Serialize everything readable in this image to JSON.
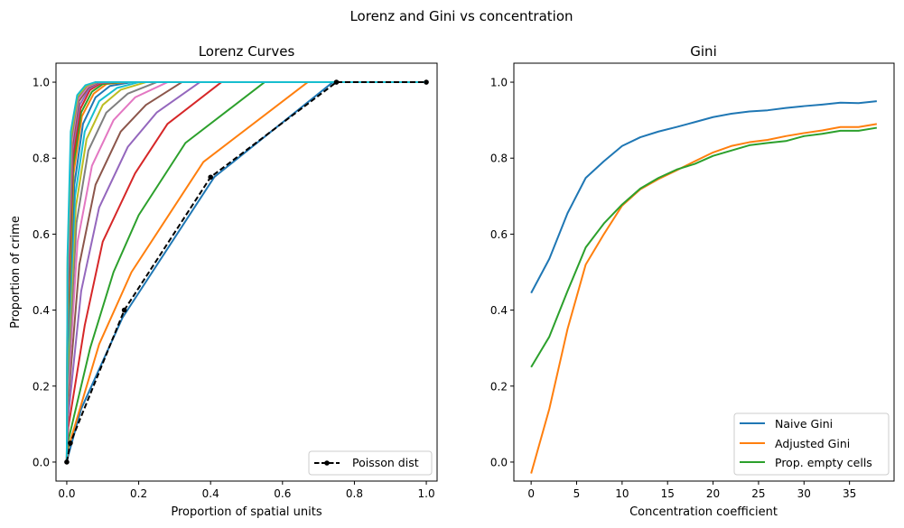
{
  "figure": {
    "title": "Lorenz and Gini vs concentration"
  },
  "chart_data": [
    {
      "type": "line",
      "title": "Lorenz Curves",
      "xlabel": "Proportion of spatial units",
      "ylabel": "Proportion of crime",
      "xlim": [
        -0.03,
        1.03
      ],
      "ylim": [
        -0.05,
        1.05
      ],
      "xticks": [
        "0.0",
        "0.2",
        "0.4",
        "0.6",
        "0.8",
        "1.0"
      ],
      "yticks": [
        "0.0",
        "0.2",
        "0.4",
        "0.6",
        "0.8",
        "1.0"
      ],
      "legend_position": "lower right",
      "legend": [
        "Poisson dist"
      ],
      "reference_series": {
        "name": "Poisson dist",
        "color": "#000000",
        "style": "dashed",
        "marker": "dot",
        "points": [
          [
            0,
            0
          ],
          [
            0.01,
            0.05
          ],
          [
            0.16,
            0.4
          ],
          [
            0.4,
            0.75
          ],
          [
            0.75,
            1.0
          ],
          [
            1.0,
            1.0
          ]
        ]
      },
      "lorenz_series": [
        {
          "color": "#1f77b4",
          "points": [
            [
              0,
              0
            ],
            [
              0.005,
              0.02
            ],
            [
              0.04,
              0.14
            ],
            [
              0.155,
              0.38
            ],
            [
              0.41,
              0.75
            ],
            [
              0.74,
              1.0
            ],
            [
              1,
              1
            ]
          ]
        },
        {
          "color": "#ff7f0e",
          "points": [
            [
              0,
              0
            ],
            [
              0.005,
              0.04
            ],
            [
              0.09,
              0.31
            ],
            [
              0.18,
              0.5
            ],
            [
              0.38,
              0.79
            ],
            [
              0.67,
              1.0
            ],
            [
              1,
              1
            ]
          ]
        },
        {
          "color": "#2ca02c",
          "points": [
            [
              0,
              0
            ],
            [
              0.005,
              0.06
            ],
            [
              0.065,
              0.3
            ],
            [
              0.13,
              0.5
            ],
            [
              0.2,
              0.65
            ],
            [
              0.33,
              0.84
            ],
            [
              0.55,
              1.0
            ],
            [
              1,
              1
            ]
          ]
        },
        {
          "color": "#d62728",
          "points": [
            [
              0,
              0
            ],
            [
              0.004,
              0.09
            ],
            [
              0.05,
              0.36
            ],
            [
              0.1,
              0.58
            ],
            [
              0.19,
              0.76
            ],
            [
              0.28,
              0.89
            ],
            [
              0.43,
              1.0
            ],
            [
              1,
              1
            ]
          ]
        },
        {
          "color": "#9467bd",
          "points": [
            [
              0,
              0
            ],
            [
              0.004,
              0.12
            ],
            [
              0.04,
              0.45
            ],
            [
              0.09,
              0.67
            ],
            [
              0.17,
              0.83
            ],
            [
              0.25,
              0.92
            ],
            [
              0.37,
              1.0
            ],
            [
              1,
              1
            ]
          ]
        },
        {
          "color": "#8c564b",
          "points": [
            [
              0,
              0
            ],
            [
              0.003,
              0.15
            ],
            [
              0.035,
              0.52
            ],
            [
              0.08,
              0.73
            ],
            [
              0.15,
              0.87
            ],
            [
              0.22,
              0.94
            ],
            [
              0.32,
              1.0
            ],
            [
              1,
              1
            ]
          ]
        },
        {
          "color": "#e377c2",
          "points": [
            [
              0,
              0
            ],
            [
              0.003,
              0.18
            ],
            [
              0.03,
              0.58
            ],
            [
              0.07,
              0.78
            ],
            [
              0.13,
              0.9
            ],
            [
              0.19,
              0.96
            ],
            [
              0.28,
              1.0
            ],
            [
              1,
              1
            ]
          ]
        },
        {
          "color": "#7f7f7f",
          "points": [
            [
              0,
              0
            ],
            [
              0.003,
              0.21
            ],
            [
              0.027,
              0.63
            ],
            [
              0.06,
              0.82
            ],
            [
              0.11,
              0.92
            ],
            [
              0.17,
              0.97
            ],
            [
              0.25,
              1.0
            ],
            [
              1,
              1
            ]
          ]
        },
        {
          "color": "#bcbd22",
          "points": [
            [
              0,
              0
            ],
            [
              0.002,
              0.24
            ],
            [
              0.025,
              0.67
            ],
            [
              0.055,
              0.85
            ],
            [
              0.1,
              0.94
            ],
            [
              0.15,
              0.98
            ],
            [
              0.22,
              1.0
            ],
            [
              1,
              1
            ]
          ]
        },
        {
          "color": "#17becf",
          "points": [
            [
              0,
              0
            ],
            [
              0.002,
              0.27
            ],
            [
              0.023,
              0.7
            ],
            [
              0.05,
              0.87
            ],
            [
              0.09,
              0.95
            ],
            [
              0.14,
              0.985
            ],
            [
              0.2,
              1.0
            ],
            [
              1,
              1
            ]
          ]
        },
        {
          "color": "#1f77b4",
          "points": [
            [
              0,
              0
            ],
            [
              0.002,
              0.3
            ],
            [
              0.021,
              0.73
            ],
            [
              0.045,
              0.89
            ],
            [
              0.08,
              0.96
            ],
            [
              0.12,
              0.99
            ],
            [
              0.18,
              1.0
            ],
            [
              1,
              1
            ]
          ]
        },
        {
          "color": "#ff7f0e",
          "points": [
            [
              0,
              0
            ],
            [
              0.002,
              0.33
            ],
            [
              0.019,
              0.76
            ],
            [
              0.042,
              0.91
            ],
            [
              0.075,
              0.97
            ],
            [
              0.11,
              0.995
            ],
            [
              0.165,
              1.0
            ],
            [
              1,
              1
            ]
          ]
        },
        {
          "color": "#2ca02c",
          "points": [
            [
              0,
              0
            ],
            [
              0.002,
              0.36
            ],
            [
              0.018,
              0.78
            ],
            [
              0.04,
              0.92
            ],
            [
              0.07,
              0.975
            ],
            [
              0.1,
              0.995
            ],
            [
              0.15,
              1.0
            ],
            [
              1,
              1
            ]
          ]
        },
        {
          "color": "#d62728",
          "points": [
            [
              0,
              0
            ],
            [
              0.002,
              0.39
            ],
            [
              0.017,
              0.8
            ],
            [
              0.038,
              0.93
            ],
            [
              0.065,
              0.98
            ],
            [
              0.095,
              0.997
            ],
            [
              0.14,
              1.0
            ],
            [
              1,
              1
            ]
          ]
        },
        {
          "color": "#9467bd",
          "points": [
            [
              0,
              0
            ],
            [
              0.002,
              0.42
            ],
            [
              0.016,
              0.82
            ],
            [
              0.036,
              0.94
            ],
            [
              0.062,
              0.983
            ],
            [
              0.09,
              0.998
            ],
            [
              0.135,
              1.0
            ],
            [
              1,
              1
            ]
          ]
        },
        {
          "color": "#8c564b",
          "points": [
            [
              0,
              0
            ],
            [
              0.002,
              0.45
            ],
            [
              0.015,
              0.83
            ],
            [
              0.034,
              0.95
            ],
            [
              0.06,
              0.986
            ],
            [
              0.088,
              0.999
            ],
            [
              0.13,
              1.0
            ],
            [
              1,
              1
            ]
          ]
        },
        {
          "color": "#e377c2",
          "points": [
            [
              0,
              0
            ],
            [
              0.002,
              0.48
            ],
            [
              0.014,
              0.84
            ],
            [
              0.032,
              0.955
            ],
            [
              0.058,
              0.988
            ],
            [
              0.085,
              0.999
            ],
            [
              0.125,
              1.0
            ],
            [
              1,
              1
            ]
          ]
        },
        {
          "color": "#7f7f7f",
          "points": [
            [
              0,
              0
            ],
            [
              0.002,
              0.5
            ],
            [
              0.013,
              0.85
            ],
            [
              0.031,
              0.96
            ],
            [
              0.056,
              0.99
            ],
            [
              0.083,
              0.999
            ],
            [
              0.122,
              1.0
            ],
            [
              1,
              1
            ]
          ]
        },
        {
          "color": "#bcbd22",
          "points": [
            [
              0,
              0
            ],
            [
              0.002,
              0.52
            ],
            [
              0.012,
              0.86
            ],
            [
              0.03,
              0.963
            ],
            [
              0.054,
              0.99
            ],
            [
              0.081,
              1.0
            ],
            [
              0.12,
              1.0
            ],
            [
              1,
              1
            ]
          ]
        },
        {
          "color": "#17becf",
          "points": [
            [
              0,
              0
            ],
            [
              0.002,
              0.54
            ],
            [
              0.011,
              0.87
            ],
            [
              0.029,
              0.966
            ],
            [
              0.052,
              0.992
            ],
            [
              0.079,
              1.0
            ],
            [
              0.118,
              1.0
            ],
            [
              1,
              1
            ]
          ]
        }
      ]
    },
    {
      "type": "line",
      "title": "Gini",
      "xlabel": "Concentration coefficient",
      "ylabel": "",
      "xlim": [
        -1.9,
        39.9
      ],
      "ylim": [
        -0.05,
        1.05
      ],
      "xticks": [
        "0",
        "5",
        "10",
        "15",
        "20",
        "25",
        "30",
        "35"
      ],
      "yticks": [
        "0.0",
        "0.2",
        "0.4",
        "0.6",
        "0.8",
        "1.0"
      ],
      "legend_position": "lower right",
      "x": [
        0,
        2,
        4,
        6,
        8,
        10,
        12,
        14,
        16,
        18,
        20,
        22,
        24,
        26,
        28,
        30,
        32,
        34,
        36,
        38
      ],
      "series": [
        {
          "name": "Naive Gini",
          "color": "#1f77b4",
          "values": [
            0.445,
            0.535,
            0.655,
            0.748,
            0.792,
            0.832,
            0.855,
            0.87,
            0.882,
            0.895,
            0.908,
            0.917,
            0.923,
            0.926,
            0.932,
            0.937,
            0.941,
            0.946,
            0.945,
            0.95
          ]
        },
        {
          "name": "Adjusted Gini",
          "color": "#ff7f0e",
          "values": [
            -0.03,
            0.14,
            0.35,
            0.52,
            0.6,
            0.675,
            0.718,
            0.745,
            0.768,
            0.792,
            0.815,
            0.832,
            0.842,
            0.848,
            0.858,
            0.866,
            0.873,
            0.882,
            0.882,
            0.89
          ]
        },
        {
          "name": "Prop. empty cells",
          "color": "#2ca02c",
          "values": [
            0.25,
            0.33,
            0.45,
            0.565,
            0.628,
            0.678,
            0.72,
            0.748,
            0.77,
            0.785,
            0.806,
            0.82,
            0.834,
            0.84,
            0.845,
            0.858,
            0.864,
            0.872,
            0.872,
            0.88
          ]
        }
      ]
    }
  ]
}
